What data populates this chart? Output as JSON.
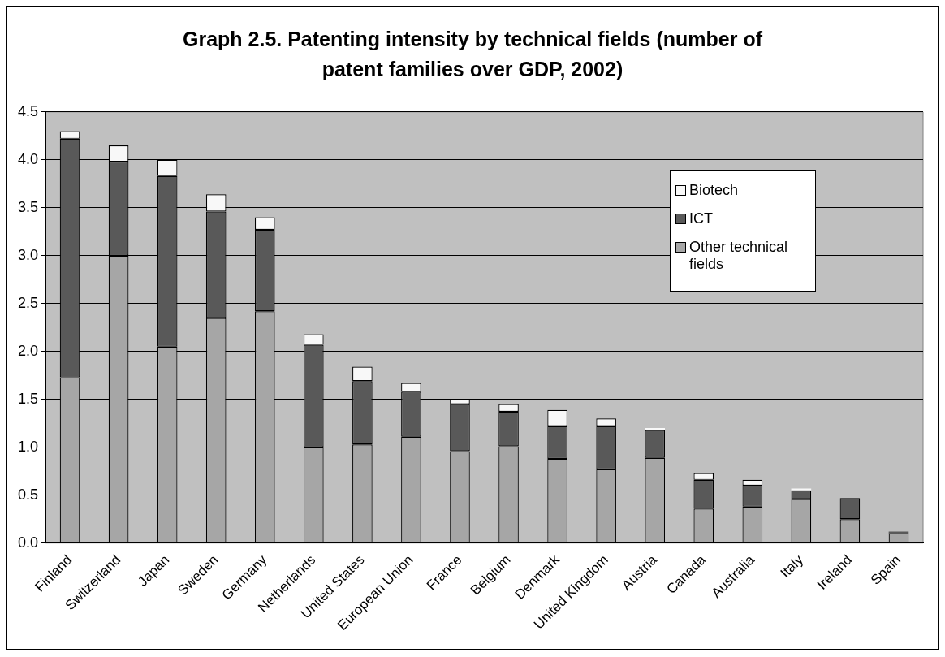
{
  "chart_data": {
    "type": "bar",
    "title": "Graph 2.5. Patenting intensity by technical fields (number of patent families over GDP, 2002)",
    "categories": [
      "Finland",
      "Switzerland",
      "Japan",
      "Sweden",
      "Germany",
      "Netherlands",
      "United States",
      "European Union",
      "France",
      "Belgium",
      "Denmark",
      "United Kingdom",
      "Austria",
      "Canada",
      "Australia",
      "Italy",
      "Ireland",
      "Spain"
    ],
    "stacked": true,
    "series": [
      {
        "name": "Other technical fields",
        "color": "#a6a6a6",
        "values": [
          1.73,
          3.0,
          2.05,
          2.35,
          2.42,
          1.0,
          1.03,
          1.11,
          0.96,
          1.01,
          0.88,
          0.77,
          0.89,
          0.36,
          0.38,
          0.46,
          0.25,
          0.1
        ]
      },
      {
        "name": "ICT",
        "color": "#595959",
        "values": [
          2.49,
          0.98,
          1.78,
          1.11,
          0.85,
          1.07,
          0.66,
          0.47,
          0.49,
          0.36,
          0.34,
          0.45,
          0.29,
          0.3,
          0.22,
          0.09,
          0.22,
          0.02
        ]
      },
      {
        "name": "Biotech",
        "color": "#f8f8f8",
        "values": [
          0.08,
          0.17,
          0.17,
          0.18,
          0.13,
          0.11,
          0.15,
          0.09,
          0.05,
          0.08,
          0.17,
          0.08,
          0.02,
          0.07,
          0.06,
          0.02,
          null,
          null
        ]
      }
    ],
    "ylim": [
      0,
      4.5
    ],
    "yticks": [
      {
        "value": 0,
        "label": "0.0"
      },
      0.5,
      {
        "value": 1,
        "label": "1.0"
      },
      1.5,
      {
        "value": 2,
        "label": "2.0"
      },
      2.5,
      {
        "value": 3,
        "label": "3.0"
      },
      3.5,
      {
        "value": 4,
        "label": "4.0"
      },
      4.5
    ],
    "grid": "y",
    "legend": "top right"
  }
}
